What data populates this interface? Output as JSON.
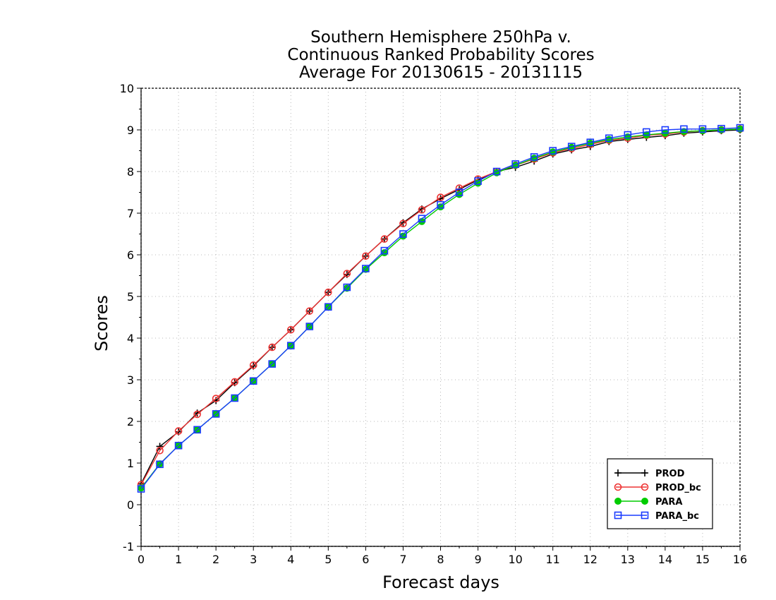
{
  "chart_data": {
    "type": "line",
    "title": [
      "Southern Hemisphere 250hPa v.",
      "Continuous Ranked Probability Scores",
      "Average For 20130615 - 20131115"
    ],
    "xlabel": "Forecast days",
    "ylabel": "Scores",
    "xlim": [
      0,
      16
    ],
    "ylim": [
      -1,
      10
    ],
    "xticks": [
      "0",
      "1",
      "2",
      "3",
      "4",
      "5",
      "6",
      "7",
      "8",
      "9",
      "10",
      "11",
      "12",
      "13",
      "14",
      "15",
      "16"
    ],
    "yticks": [
      "-1",
      "0",
      "1",
      "2",
      "3",
      "4",
      "5",
      "6",
      "7",
      "8",
      "9",
      "10"
    ],
    "grid": true,
    "legend_position": "bottom-right",
    "x": [
      0,
      0.5,
      1,
      1.5,
      2,
      2.5,
      3,
      3.5,
      4,
      4.5,
      5,
      5.5,
      6,
      6.5,
      7,
      7.5,
      8,
      8.5,
      9,
      9.5,
      10,
      10.5,
      11,
      11.5,
      12,
      12.5,
      13,
      13.5,
      14,
      14.5,
      15,
      15.5,
      16
    ],
    "series": [
      {
        "name": "PROD",
        "color": "#000000",
        "marker": "plus",
        "values": [
          0.5,
          1.4,
          1.75,
          2.2,
          2.5,
          2.93,
          3.33,
          3.78,
          4.2,
          4.65,
          5.1,
          5.53,
          5.97,
          6.38,
          6.77,
          7.1,
          7.35,
          7.57,
          7.8,
          8.0,
          8.1,
          8.25,
          8.42,
          8.52,
          8.6,
          8.72,
          8.77,
          8.82,
          8.86,
          8.92,
          8.95,
          8.98,
          9.0
        ]
      },
      {
        "name": "PROD_bc",
        "color": "#ee3333",
        "marker": "circle",
        "values": [
          0.48,
          1.3,
          1.77,
          2.17,
          2.55,
          2.95,
          3.35,
          3.78,
          4.2,
          4.65,
          5.1,
          5.55,
          5.97,
          6.38,
          6.75,
          7.08,
          7.38,
          7.6,
          7.82,
          8.0,
          8.15,
          8.3,
          8.45,
          8.55,
          8.65,
          8.75,
          8.8,
          8.87,
          8.9,
          8.95,
          8.98,
          9.0,
          9.02
        ]
      },
      {
        "name": "PARA",
        "color": "#00cc00",
        "marker": "filled-circle",
        "values": [
          0.4,
          0.98,
          1.42,
          1.8,
          2.18,
          2.56,
          2.97,
          3.38,
          3.82,
          4.28,
          4.75,
          5.2,
          5.65,
          6.05,
          6.45,
          6.8,
          7.15,
          7.45,
          7.72,
          7.97,
          8.15,
          8.32,
          8.47,
          8.58,
          8.68,
          8.77,
          8.83,
          8.88,
          8.92,
          8.96,
          8.98,
          9.0,
          9.02
        ]
      },
      {
        "name": "PARA_bc",
        "color": "#1a3bff",
        "marker": "square",
        "values": [
          0.38,
          0.97,
          1.42,
          1.8,
          2.18,
          2.56,
          2.97,
          3.38,
          3.82,
          4.28,
          4.75,
          5.22,
          5.67,
          6.1,
          6.5,
          6.87,
          7.2,
          7.5,
          7.77,
          8.0,
          8.18,
          8.35,
          8.5,
          8.6,
          8.7,
          8.8,
          8.88,
          8.95,
          9.0,
          9.02,
          9.02,
          9.03,
          9.05
        ]
      }
    ]
  }
}
